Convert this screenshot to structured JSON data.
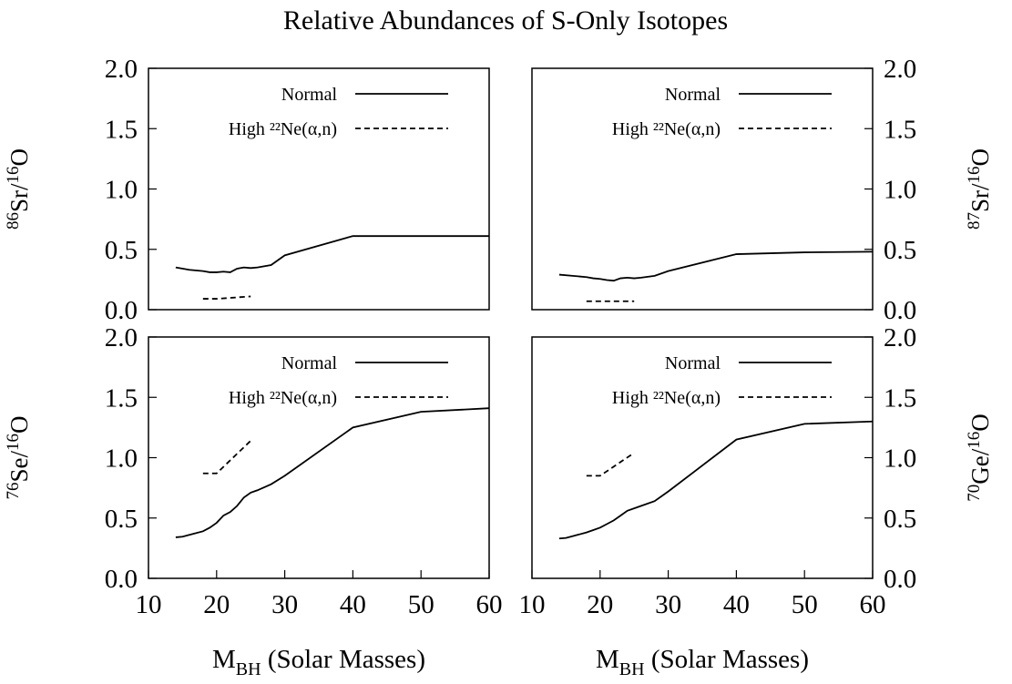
{
  "title": "Relative Abundances of S-Only Isotopes",
  "chart_data": [
    {
      "type": "line",
      "ylabel": [
        "86",
        "Sr/",
        "16",
        "O"
      ],
      "yaxis_side": "left",
      "legend": "upper right",
      "xlim": [
        10,
        60
      ],
      "ylim": [
        0,
        2
      ],
      "yticks": [
        {
          "value": 0,
          "label": "0.0"
        },
        {
          "value": 0.5,
          "label": "0.5"
        },
        {
          "value": 1,
          "label": "1.0"
        },
        {
          "value": 1.5,
          "label": "1.5"
        },
        {
          "value": 2,
          "label": "2.0"
        }
      ],
      "series": [
        {
          "name": "Normal",
          "color": "#000000",
          "dash": "solid",
          "x": [
            14,
            16,
            18,
            19,
            20,
            21,
            22,
            23,
            24,
            25,
            26,
            28,
            30,
            40,
            50,
            60
          ],
          "values": [
            0.35,
            0.33,
            0.32,
            0.31,
            0.31,
            0.315,
            0.31,
            0.34,
            0.35,
            0.345,
            0.35,
            0.37,
            0.45,
            0.61,
            0.61,
            0.61
          ]
        },
        {
          "name": "High ²²Ne(α,n)",
          "color": "#000000",
          "dash": "dashed",
          "x": [
            18,
            20,
            25
          ],
          "values": [
            0.09,
            0.09,
            0.11
          ]
        }
      ]
    },
    {
      "type": "line",
      "ylabel": [
        "87",
        "Sr/",
        "16",
        "O"
      ],
      "yaxis_side": "right",
      "legend": "upper right",
      "xlim": [
        10,
        60
      ],
      "ylim": [
        0,
        2
      ],
      "yticks": [
        {
          "value": 0,
          "label": "0.0"
        },
        {
          "value": 0.5,
          "label": "0.5"
        },
        {
          "value": 1,
          "label": "1.0"
        },
        {
          "value": 1.5,
          "label": "1.5"
        },
        {
          "value": 2,
          "label": "2.0"
        }
      ],
      "series": [
        {
          "name": "Normal",
          "color": "#000000",
          "dash": "solid",
          "x": [
            14,
            16,
            18,
            19,
            20,
            21,
            22,
            23,
            24,
            25,
            26,
            28,
            30,
            40,
            50,
            60
          ],
          "values": [
            0.29,
            0.28,
            0.27,
            0.26,
            0.255,
            0.245,
            0.24,
            0.26,
            0.265,
            0.26,
            0.265,
            0.28,
            0.32,
            0.46,
            0.475,
            0.48
          ]
        },
        {
          "name": "High ²²Ne(α,n)",
          "color": "#000000",
          "dash": "dashed",
          "x": [
            18,
            20,
            25
          ],
          "values": [
            0.07,
            0.07,
            0.07
          ]
        }
      ]
    },
    {
      "type": "line",
      "ylabel": [
        "76",
        "Se/",
        "16",
        "O"
      ],
      "yaxis_side": "left",
      "legend": "upper right",
      "xlabel": [
        "M",
        "BH",
        " (Solar Masses)"
      ],
      "xlim": [
        10,
        60
      ],
      "xticks": [
        10,
        20,
        30,
        40,
        50,
        60
      ],
      "ylim": [
        0,
        2
      ],
      "yticks": [
        {
          "value": 0,
          "label": "0.0"
        },
        {
          "value": 0.5,
          "label": "0.5"
        },
        {
          "value": 1,
          "label": "1.0"
        },
        {
          "value": 1.5,
          "label": "1.5"
        },
        {
          "value": 2,
          "label": "2.0"
        }
      ],
      "series": [
        {
          "name": "Normal",
          "color": "#000000",
          "dash": "solid",
          "x": [
            14,
            15,
            16,
            18,
            19,
            20,
            21,
            22,
            23,
            24,
            25,
            26,
            28,
            30,
            40,
            50,
            60
          ],
          "values": [
            0.34,
            0.345,
            0.36,
            0.39,
            0.42,
            0.46,
            0.52,
            0.55,
            0.6,
            0.67,
            0.71,
            0.73,
            0.78,
            0.85,
            1.25,
            1.38,
            1.41
          ]
        },
        {
          "name": "High ²²Ne(α,n)",
          "color": "#000000",
          "dash": "dashed",
          "x": [
            18,
            20,
            25
          ],
          "values": [
            0.87,
            0.87,
            1.14
          ]
        }
      ]
    },
    {
      "type": "line",
      "ylabel": [
        "70",
        "Ge/",
        "16",
        "O"
      ],
      "yaxis_side": "right",
      "legend": "upper right",
      "xlabel": [
        "M",
        "BH",
        " (Solar Masses)"
      ],
      "xlim": [
        10,
        60
      ],
      "xticks": [
        10,
        20,
        30,
        40,
        50,
        60
      ],
      "ylim": [
        0,
        2
      ],
      "yticks": [
        {
          "value": 0,
          "label": "0.0"
        },
        {
          "value": 0.5,
          "label": "0.5"
        },
        {
          "value": 1,
          "label": "1.0"
        },
        {
          "value": 1.5,
          "label": "1.5"
        },
        {
          "value": 2,
          "label": "2.0"
        }
      ],
      "series": [
        {
          "name": "Normal",
          "color": "#000000",
          "dash": "solid",
          "x": [
            14,
            15,
            16,
            18,
            19,
            20,
            21,
            22,
            23,
            24,
            26,
            28,
            30,
            40,
            50,
            60
          ],
          "values": [
            0.33,
            0.335,
            0.35,
            0.38,
            0.4,
            0.42,
            0.45,
            0.48,
            0.52,
            0.56,
            0.6,
            0.64,
            0.72,
            1.15,
            1.28,
            1.3
          ]
        },
        {
          "name": "High ²²Ne(α,n)",
          "color": "#000000",
          "dash": "dashed",
          "x": [
            18,
            20,
            25
          ],
          "values": [
            0.85,
            0.85,
            1.04
          ]
        }
      ]
    }
  ]
}
